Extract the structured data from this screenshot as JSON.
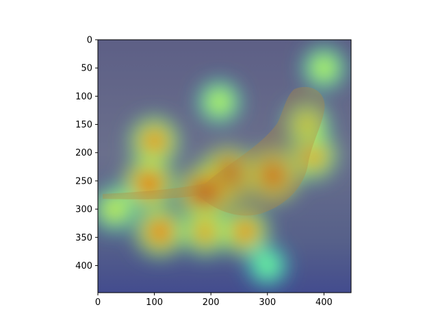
{
  "chart_data": {
    "type": "heatmap",
    "description_visible": "",
    "title": "",
    "xlabel": "",
    "ylabel": "",
    "xlim": [
      0,
      448
    ],
    "ylim": [
      448,
      0
    ],
    "y_inverted": true,
    "grid": false,
    "legend": "none",
    "colormap": "jet",
    "x_ticks": [
      0,
      100,
      200,
      300,
      400
    ],
    "y_ticks": [
      0,
      50,
      100,
      150,
      200,
      250,
      300,
      350,
      400
    ],
    "heat_peaks": [
      {
        "x": 230,
        "y": 240,
        "intensity": 1.0
      },
      {
        "x": 310,
        "y": 240,
        "intensity": 0.9
      },
      {
        "x": 190,
        "y": 272,
        "intensity": 1.0
      },
      {
        "x": 380,
        "y": 205,
        "intensity": 0.7
      },
      {
        "x": 100,
        "y": 180,
        "intensity": 0.75
      },
      {
        "x": 90,
        "y": 255,
        "intensity": 0.85
      },
      {
        "x": 110,
        "y": 340,
        "intensity": 0.8
      },
      {
        "x": 190,
        "y": 340,
        "intensity": 0.7
      },
      {
        "x": 260,
        "y": 340,
        "intensity": 0.75
      },
      {
        "x": 370,
        "y": 150,
        "intensity": 0.55
      },
      {
        "x": 400,
        "y": 50,
        "intensity": 0.45
      },
      {
        "x": 215,
        "y": 110,
        "intensity": 0.45
      },
      {
        "x": 30,
        "y": 300,
        "intensity": 0.5
      },
      {
        "x": 300,
        "y": 400,
        "intensity": 0.3
      }
    ]
  },
  "colors": {
    "axis": "#000000",
    "background": "#ffffff",
    "image_base": "#6f6f8c"
  }
}
